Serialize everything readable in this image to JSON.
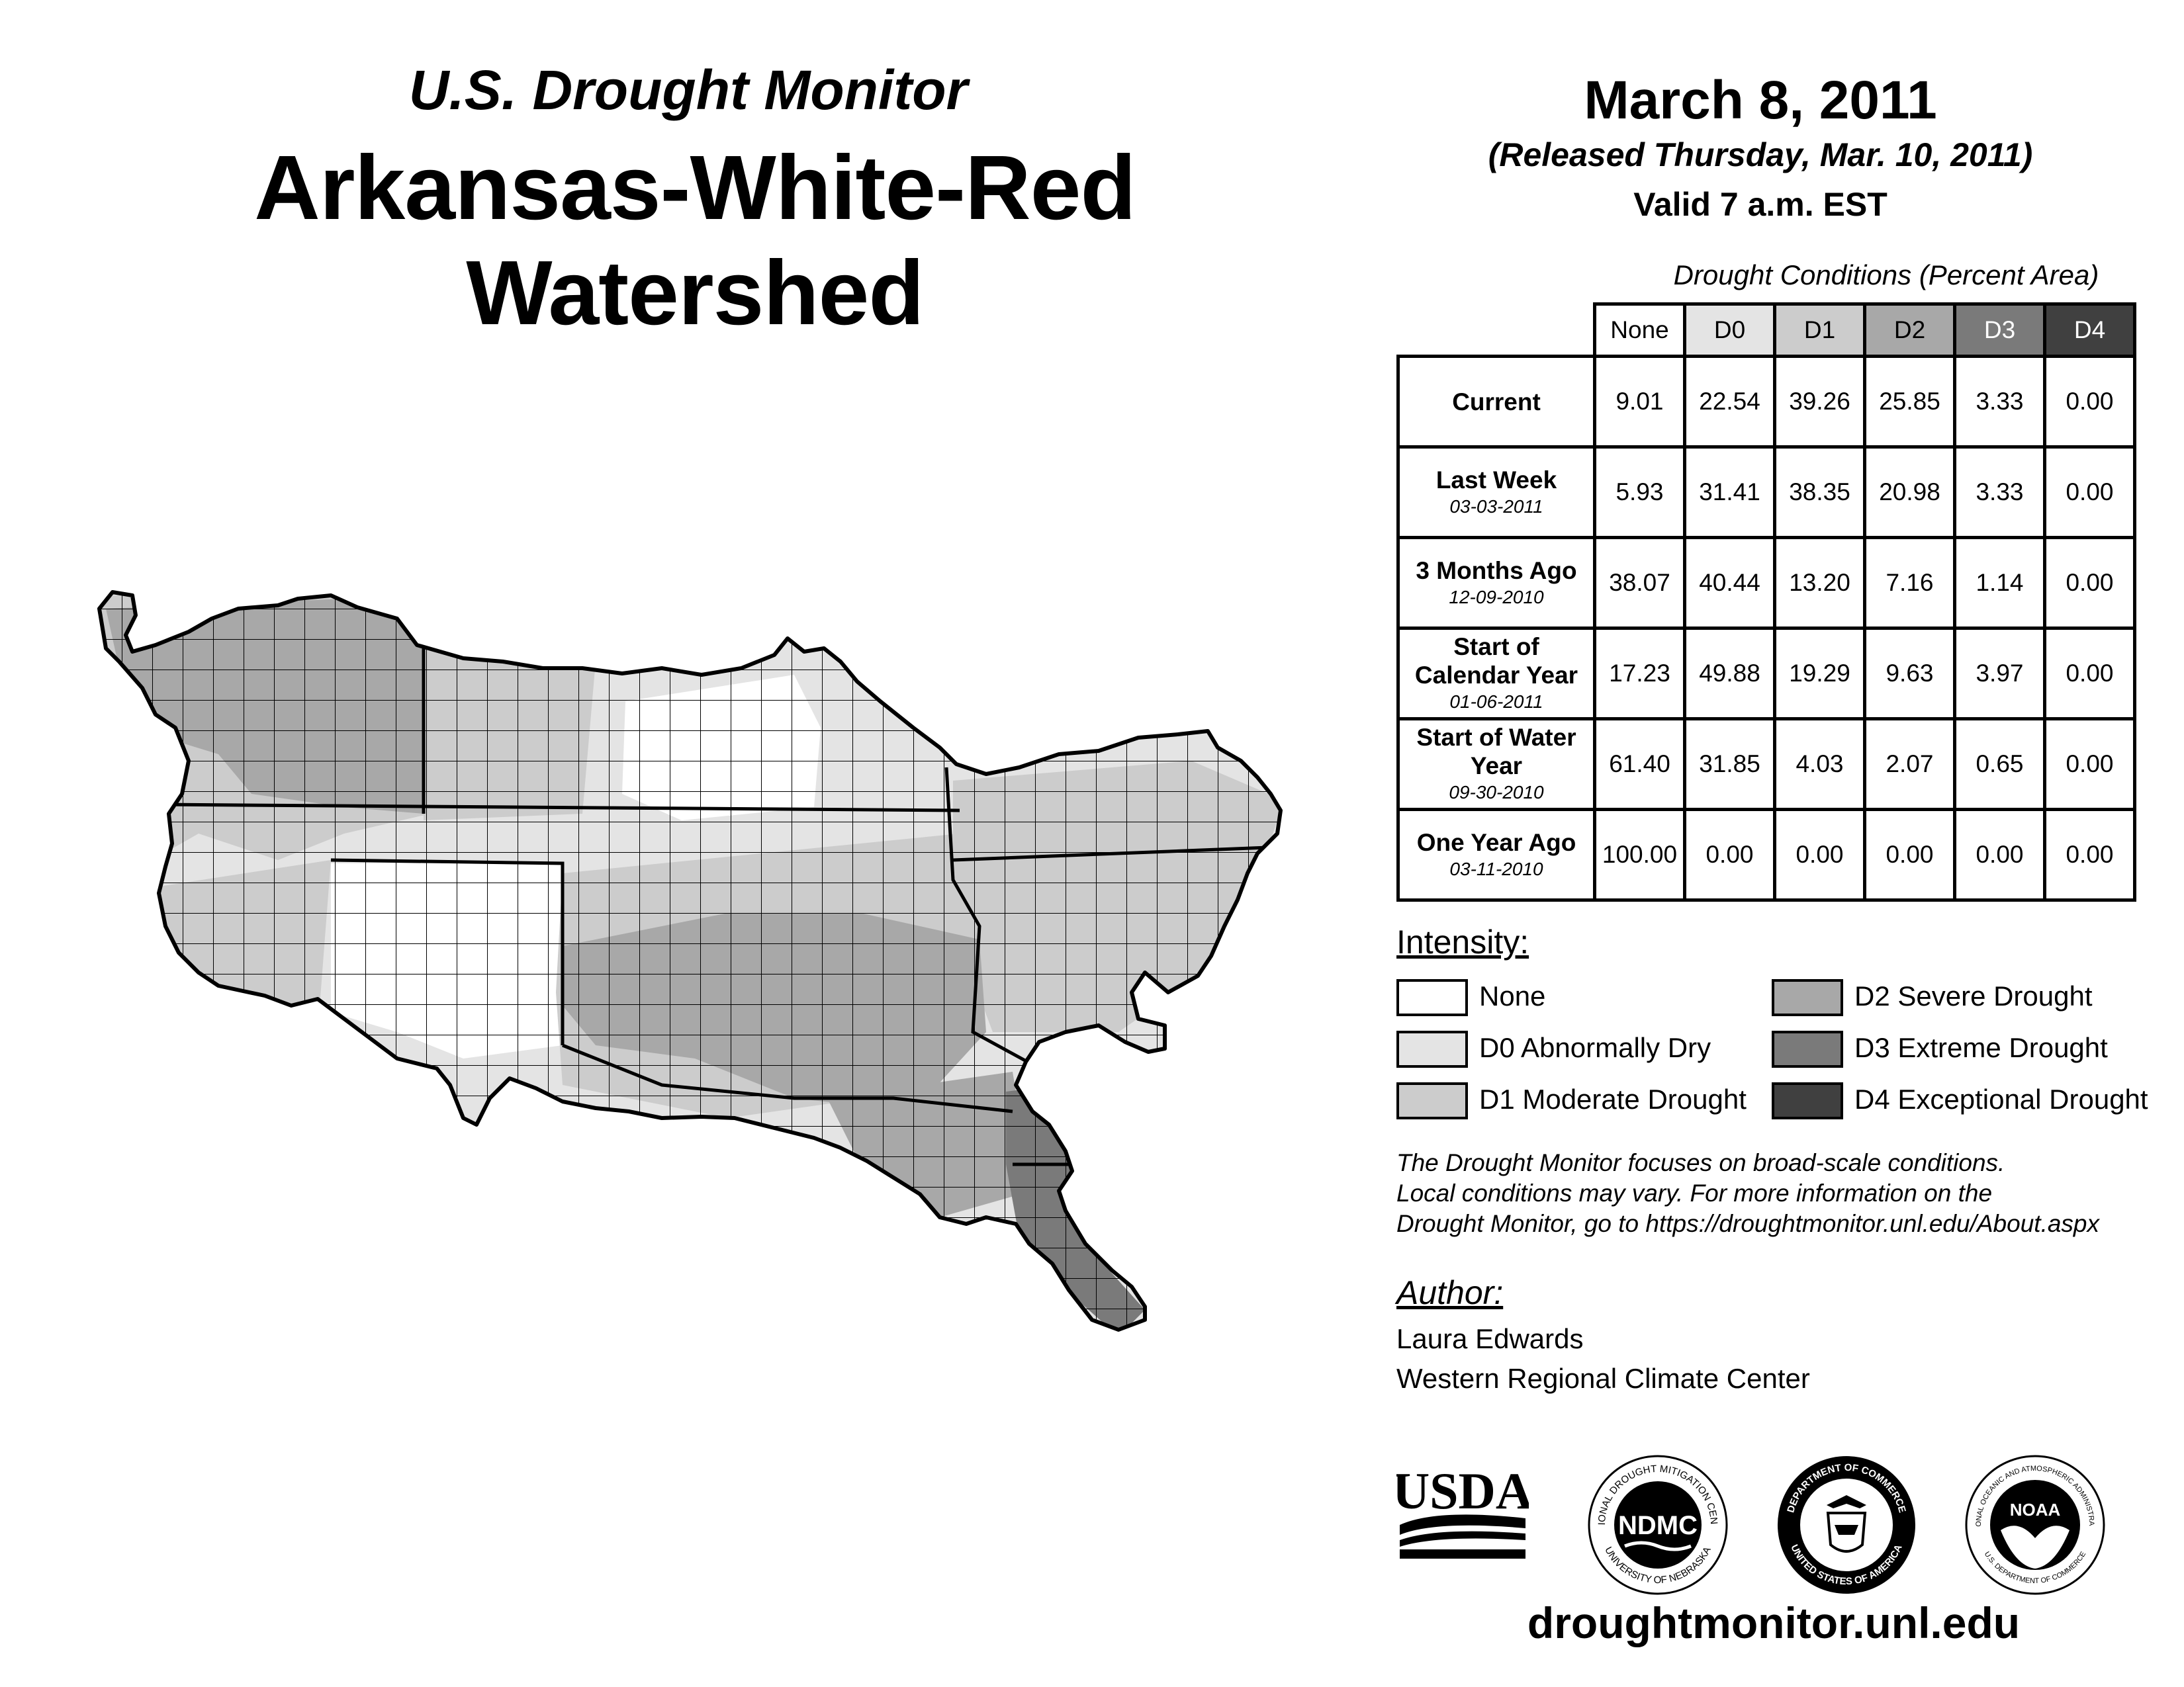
{
  "header": {
    "subtitle": "U.S. Drought Monitor",
    "title": "Arkansas-White-Red Watershed",
    "date": "March 8, 2011",
    "released": "(Released Thursday, Mar. 10, 2011)",
    "valid": "Valid 7 a.m. EST"
  },
  "table": {
    "caption": "Drought Conditions (Percent Area)",
    "columns": [
      "None",
      "D0",
      "D1",
      "D2",
      "D3",
      "D4"
    ],
    "rows": [
      {
        "label": "Current",
        "date": "",
        "values": [
          "9.01",
          "22.54",
          "39.26",
          "25.85",
          "3.33",
          "0.00"
        ]
      },
      {
        "label": "Last Week",
        "date": "03-03-2011",
        "values": [
          "5.93",
          "31.41",
          "38.35",
          "20.98",
          "3.33",
          "0.00"
        ]
      },
      {
        "label": "3 Months Ago",
        "date": "12-09-2010",
        "values": [
          "38.07",
          "40.44",
          "13.20",
          "7.16",
          "1.14",
          "0.00"
        ]
      },
      {
        "label": "Start of Calendar Year",
        "date": "01-06-2011",
        "values": [
          "17.23",
          "49.88",
          "19.29",
          "9.63",
          "3.97",
          "0.00"
        ]
      },
      {
        "label": "Start of Water Year",
        "date": "09-30-2010",
        "values": [
          "61.40",
          "31.85",
          "4.03",
          "2.07",
          "0.65",
          "0.00"
        ]
      },
      {
        "label": "One Year Ago",
        "date": "03-11-2010",
        "values": [
          "100.00",
          "0.00",
          "0.00",
          "0.00",
          "0.00",
          "0.00"
        ]
      }
    ]
  },
  "legend": {
    "heading": "Intensity:",
    "items": [
      {
        "label": "None",
        "color": "#ffffff"
      },
      {
        "label": "D0 Abnormally Dry",
        "color": "#e4e4e4"
      },
      {
        "label": "D1 Moderate Drought",
        "color": "#cccccc"
      },
      {
        "label": "D2 Severe Drought",
        "color": "#a8a8a8"
      },
      {
        "label": "D3 Extreme Drought",
        "color": "#7a7a7a"
      },
      {
        "label": "D4 Exceptional Drought",
        "color": "#404040"
      }
    ]
  },
  "note": {
    "line1": "The Drought Monitor focuses on broad-scale conditions.",
    "line2": "Local conditions may vary. For more information on the",
    "line3": "Drought Monitor, go to https://droughtmonitor.unl.edu/About.aspx"
  },
  "author": {
    "heading": "Author:",
    "name": "Laura Edwards",
    "org": "Western Regional Climate Center"
  },
  "logos": {
    "usda": "USDA",
    "ndmc": "NDMC",
    "ndmc_top": "NATIONAL DROUGHT MITIGATION CENTER",
    "ndmc_bottom": "UNIVERSITY OF NEBRASKA",
    "doc_top": "DEPARTMENT OF COMMERCE",
    "doc_bottom": "UNITED STATES OF AMERICA",
    "noaa": "NOAA",
    "noaa_top": "NATIONAL OCEANIC AND ATMOSPHERIC ADMINISTRATION",
    "noaa_bottom": "U.S. DEPARTMENT OF COMMERCE"
  },
  "footer": {
    "url": "droughtmonitor.unl.edu"
  }
}
